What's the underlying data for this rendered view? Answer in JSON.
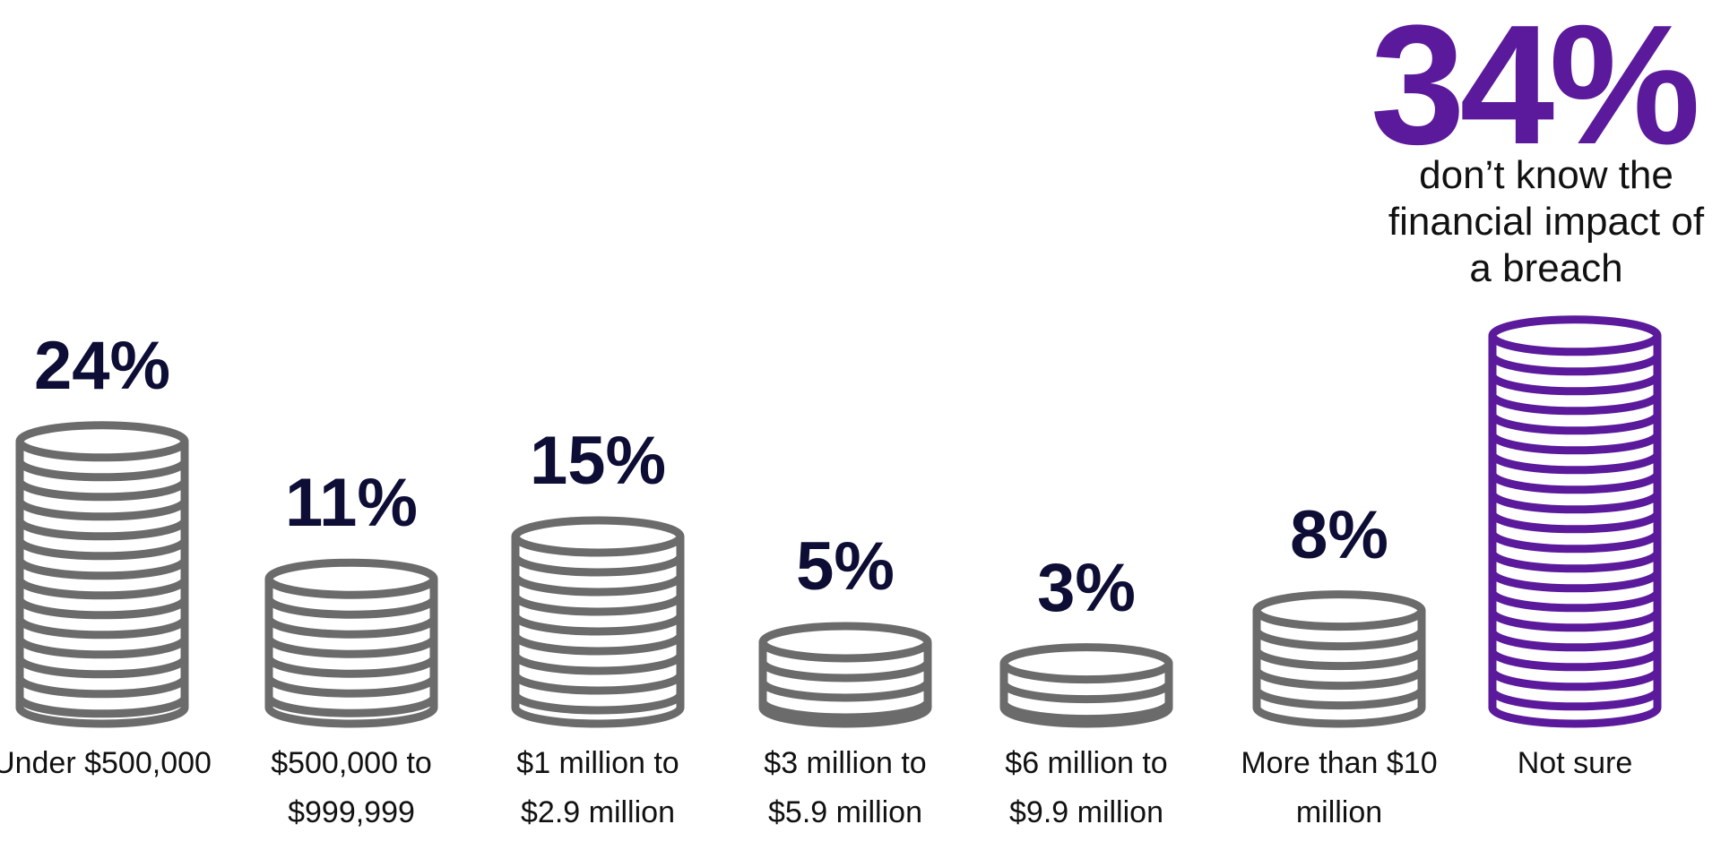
{
  "chart_data": {
    "type": "coin-stack",
    "categories": [
      "Under $500,000",
      "$500,000 to $999,999",
      "$1 million to $2.9 million",
      "$3 million to $5.9 million",
      "$6 million to $9.9 million",
      "More than $10 million",
      "Not sure"
    ],
    "values": [
      24,
      11,
      15,
      5,
      3,
      8,
      34
    ],
    "value_labels": [
      "24%",
      "11%",
      "15%",
      "5%",
      "3%",
      "8%",
      "34%"
    ],
    "colors": [
      "#6b6b6b",
      "#6b6b6b",
      "#6b6b6b",
      "#6b6b6b",
      "#6b6b6b",
      "#6b6b6b",
      "#5b1a9b"
    ],
    "label_color": "#0d0d35",
    "highlight_color": "#5b1a9b",
    "annotation": "don’t know the financial impact of a breach"
  }
}
